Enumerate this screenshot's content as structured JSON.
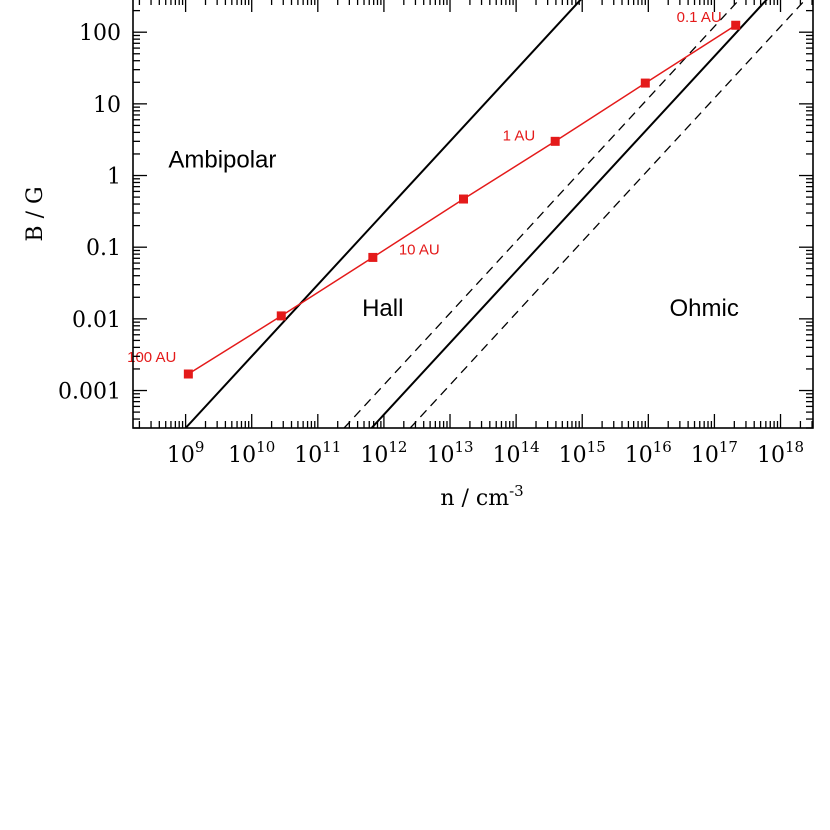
{
  "chart_data": {
    "type": "line",
    "title": "",
    "xlabel": "n / cm",
    "xlabel_sup": "-3",
    "ylabel": "B / G",
    "x_scale": "log",
    "y_scale": "log",
    "xlim": [
      160000000.0,
      3.1e+18
    ],
    "ylim": [
      0.0003,
      300
    ],
    "x_ticks": [
      {
        "value": 1000000000.0,
        "label": "10",
        "sup": "9"
      },
      {
        "value": 10000000000.0,
        "label": "10",
        "sup": "10"
      },
      {
        "value": 100000000000.0,
        "label": "10",
        "sup": "11"
      },
      {
        "value": 1000000000000.0,
        "label": "10",
        "sup": "12"
      },
      {
        "value": 10000000000000.0,
        "label": "10",
        "sup": "13"
      },
      {
        "value": 100000000000000.0,
        "label": "10",
        "sup": "14"
      },
      {
        "value": 1000000000000000.0,
        "label": "10",
        "sup": "15"
      },
      {
        "value": 1e+16,
        "label": "10",
        "sup": "16"
      },
      {
        "value": 1e+17,
        "label": "10",
        "sup": "17"
      },
      {
        "value": 1e+18,
        "label": "10",
        "sup": "18"
      }
    ],
    "y_ticks": [
      {
        "value": 0.001,
        "label": "0.001"
      },
      {
        "value": 0.01,
        "label": "0.01"
      },
      {
        "value": 0.1,
        "label": "0.1"
      },
      {
        "value": 1,
        "label": "1"
      },
      {
        "value": 10,
        "label": "10"
      },
      {
        "value": 100,
        "label": "100"
      }
    ],
    "boundary_lines": [
      {
        "style": "solid",
        "points": [
          [
            1000000000.0,
            0.0003
          ],
          [
            1000000000000000.0,
            300
          ]
        ]
      },
      {
        "style": "dashed",
        "points": [
          [
            250000000000.0,
            0.0003
          ],
          [
            2.5e+17,
            300
          ]
        ]
      },
      {
        "style": "solid",
        "points": [
          [
            650000000000.0,
            0.0003
          ],
          [
            6.5e+17,
            300
          ]
        ]
      },
      {
        "style": "dashed",
        "points": [
          [
            2500000000000.0,
            0.0003
          ],
          [
            2.5e+18,
            300
          ]
        ]
      }
    ],
    "series": [
      {
        "color": "#e41a1a",
        "x": [
          1100000000.0,
          28000000000.0,
          680000000000.0,
          16000000000000.0,
          390000000000000.0,
          9000000000000000.0,
          2.1e+17
        ],
        "y": [
          0.0017,
          0.011,
          0.072,
          0.47,
          3.0,
          19.5,
          125
        ]
      }
    ],
    "point_labels": [
      {
        "text": "100 AU",
        "x": 1100000000.0,
        "y": 0.0017,
        "anchor": "end",
        "dx": -12,
        "dy": -12
      },
      {
        "text": "10 AU",
        "x": 680000000000.0,
        "y": 0.072,
        "anchor": "start",
        "dx": 26,
        "dy": -3
      },
      {
        "text": "1 AU",
        "x": 390000000000000.0,
        "y": 3.0,
        "anchor": "end",
        "dx": -20,
        "dy": -1
      },
      {
        "text": "0.1 AU",
        "x": 2.1e+17,
        "y": 125,
        "anchor": "end",
        "dx": -14,
        "dy": -3
      }
    ],
    "region_labels": [
      {
        "text": "Ambipolar",
        "x": 3600000000.0,
        "y": 1.3
      },
      {
        "text": "Hall",
        "x": 960000000000.0,
        "y": 0.011
      },
      {
        "text": "Ohmic",
        "x": 7e+16,
        "y": 0.011
      }
    ],
    "colors": {
      "axis": "#000000",
      "data": "#e41a1a"
    }
  }
}
